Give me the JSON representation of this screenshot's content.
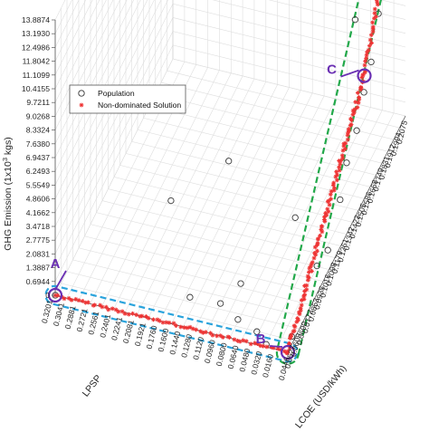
{
  "chart_data": {
    "type": "scatter",
    "projection": "3d",
    "grid": true,
    "legend_position": "top-left",
    "zlabel": "GHG Emission (1x10^3 kgs)",
    "zlabel_parts": {
      "main": "GHG Emission (1x10",
      "sup": "3",
      "tail": " kgs)"
    },
    "xlabel": "LPSP",
    "ylabel": "LCOE (USD/kWh)",
    "z_ticks": [
      "0",
      "0.6944",
      "1.3887",
      "2.0831",
      "2.7775",
      "3.4718",
      "4.1662",
      "4.8606",
      "5.5549",
      "6.2493",
      "6.9437",
      "7.6380",
      "8.3324",
      "9.0268",
      "9.7211",
      "10.4155",
      "11.1099",
      "11.8042",
      "12.4986",
      "13.1930",
      "13.8874"
    ],
    "lpsp_ticks": [
      "0.3201",
      "0.3041",
      "0.2881",
      "0.2721",
      "0.2561",
      "0.2401",
      "0.2241",
      "0.2081",
      "0.1921",
      "0.1760",
      "0.1600",
      "0.1440",
      "0.1280",
      "0.1120",
      "0.0960",
      "0.0800",
      "0.0640",
      "0.0480",
      "0.0320",
      "0.0160"
    ],
    "lcoe_ticks": [
      "0.0446",
      "0.0527",
      "0.0609",
      "0.0690",
      "0.0772",
      "0.0853",
      "0.0935",
      "0.1016",
      "0.1098",
      "0.1179",
      "0.1261",
      "0.1342",
      "0.1423",
      "0.1505",
      "0.1586",
      "0.1668",
      "0.1749",
      "0.1831",
      "0.1912",
      "0.1994",
      "0.2075"
    ],
    "legend": [
      "Population",
      "Non-dominated Solution"
    ],
    "colors": {
      "population": "#3a3a3a",
      "non_dominated": "#ee3333",
      "annotation": "#6a2fb3",
      "dashed_lpsp": "#2aa3dc",
      "dashed_lcoe": "#22a84a"
    },
    "annotations": [
      {
        "label": "A",
        "lpsp": 0.3201,
        "lcoe": 0.0446,
        "ghg": 0.0
      },
      {
        "label": "B",
        "lpsp": 0.0,
        "lcoe": 0.0446,
        "ghg": 0.0
      },
      {
        "label": "C",
        "lpsp": 0.0,
        "lcoe": 0.1505,
        "ghg": 6.2
      },
      {
        "label": "D",
        "lpsp": 0.0,
        "lcoe": 0.2075,
        "ghg": 13.6
      }
    ],
    "series": [
      {
        "name": "Population",
        "marker": "open-circle",
        "points": [
          {
            "lpsp": 0.32,
            "lcoe": 0.0446,
            "ghg": 0.0
          },
          {
            "lpsp": 0.185,
            "lcoe": 0.069,
            "ghg": 4.2
          },
          {
            "lpsp": 0.13,
            "lcoe": 0.0935,
            "ghg": 4.9
          },
          {
            "lpsp": 0.06,
            "lcoe": 0.1505,
            "ghg": 10.1
          },
          {
            "lpsp": 0.02,
            "lcoe": 0.158,
            "ghg": 8.3
          },
          {
            "lpsp": 0.015,
            "lcoe": 0.07,
            "ghg": 4.8
          },
          {
            "lpsp": 0.01,
            "lcoe": 0.158,
            "ghg": 12.9
          },
          {
            "lpsp": 0.005,
            "lcoe": 0.183,
            "ghg": 11.1
          },
          {
            "lpsp": 0.15,
            "lcoe": 0.06,
            "ghg": 0.3
          },
          {
            "lpsp": 0.11,
            "lcoe": 0.062,
            "ghg": 0.2
          },
          {
            "lpsp": 0.08,
            "lcoe": 0.056,
            "ghg": 0.1
          },
          {
            "lpsp": 0.05,
            "lcoe": 0.052,
            "ghg": 0.05
          },
          {
            "lpsp": 0.09,
            "lcoe": 0.07,
            "ghg": 0.8
          },
          {
            "lpsp": 0.03,
            "lcoe": 0.045,
            "ghg": 0.1
          },
          {
            "lpsp": 0.0,
            "lcoe": 0.05,
            "ghg": 0.4
          },
          {
            "lpsp": 0.0,
            "lcoe": 0.085,
            "ghg": 1.4
          },
          {
            "lpsp": 0.0,
            "lcoe": 0.1,
            "ghg": 1.1
          },
          {
            "lpsp": 0.0,
            "lcoe": 0.117,
            "ghg": 2.4
          },
          {
            "lpsp": 0.0,
            "lcoe": 0.126,
            "ghg": 3.6
          },
          {
            "lpsp": 0.0,
            "lcoe": 0.14,
            "ghg": 4.2
          },
          {
            "lpsp": 0.0,
            "lcoe": 0.15,
            "ghg": 5.4
          },
          {
            "lpsp": 0.0,
            "lcoe": 0.16,
            "ghg": 6.2
          },
          {
            "lpsp": 0.0,
            "lcoe": 0.17,
            "ghg": 7.9
          },
          {
            "lpsp": 0.0,
            "lcoe": 0.178,
            "ghg": 8.7
          },
          {
            "lpsp": 0.0,
            "lcoe": 0.185,
            "ghg": 9.6
          },
          {
            "lpsp": 0.0,
            "lcoe": 0.19,
            "ghg": 10.3
          },
          {
            "lpsp": 0.0,
            "lcoe": 0.195,
            "ghg": 11.2
          },
          {
            "lpsp": 0.0,
            "lcoe": 0.2,
            "ghg": 12.0
          },
          {
            "lpsp": 0.0,
            "lcoe": 0.205,
            "ghg": 13.0
          },
          {
            "lpsp": 0.0,
            "lcoe": 0.2075,
            "ghg": 13.6
          },
          {
            "lpsp": 0.0,
            "lcoe": 0.2,
            "ghg": 11.6
          },
          {
            "lpsp": 0.0,
            "lcoe": 0.197,
            "ghg": 11.0
          },
          {
            "lpsp": 0.0,
            "lcoe": 0.193,
            "ghg": 10.7
          }
        ]
      },
      {
        "name": "Non-dominated Solution",
        "marker": "red-star",
        "segments": [
          {
            "from": {
              "lpsp": 0.3201,
              "lcoe": 0.0446,
              "ghg": 0.0
            },
            "to": {
              "lpsp": 0.0,
              "lcoe": 0.0446,
              "ghg": 0.0
            },
            "count": 70,
            "jitter": 0.015
          },
          {
            "from": {
              "lpsp": 0.0,
              "lcoe": 0.0446,
              "ghg": 0.0
            },
            "to": {
              "lpsp": 0.0,
              "lcoe": 0.1505,
              "ghg": 6.2
            },
            "count": 110,
            "jitter": 0.02
          },
          {
            "from": {
              "lpsp": 0.0,
              "lcoe": 0.1505,
              "ghg": 6.2
            },
            "to": {
              "lpsp": 0.0,
              "lcoe": 0.2075,
              "ghg": 13.6
            },
            "count": 70,
            "jitter": 0.02
          }
        ]
      }
    ]
  }
}
